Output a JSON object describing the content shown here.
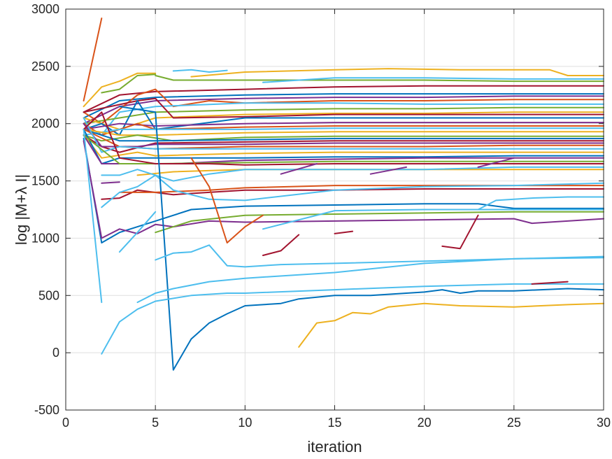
{
  "chart_data": {
    "type": "line",
    "title": "",
    "xlabel": "iteration",
    "ylabel": "log |M+λ I|",
    "xlim": [
      0,
      30
    ],
    "ylim": [
      -500,
      3000
    ],
    "xticks": [
      "0",
      "5",
      "10",
      "15",
      "20",
      "25",
      "30"
    ],
    "yticks": [
      "-500",
      "0",
      "500",
      "1000",
      "1500",
      "2000",
      "2500",
      "3000"
    ],
    "grid": true,
    "legend": "none",
    "palette": [
      "#0072BD",
      "#D95319",
      "#EDB120",
      "#7E2F8E",
      "#77AC30",
      "#4DBEEE",
      "#A2142F"
    ],
    "series": [
      {
        "name": "s1",
        "color": "#D95319",
        "x": [
          1,
          2
        ],
        "y": [
          2200,
          2920
        ]
      },
      {
        "name": "s2",
        "color": "#EDB120",
        "x": [
          1,
          2,
          3,
          4,
          5
        ],
        "y": [
          2150,
          2320,
          2370,
          2440,
          2440
        ]
      },
      {
        "name": "s3",
        "color": "#77AC30",
        "x": [
          2,
          3,
          4,
          5
        ],
        "y": [
          2270,
          2300,
          2420,
          2430
        ]
      },
      {
        "name": "s4",
        "color": "#4DBEEE",
        "x": [
          6,
          7,
          8,
          9
        ],
        "y": [
          2460,
          2470,
          2450,
          2465
        ]
      },
      {
        "name": "s5",
        "color": "#EDB120",
        "x": [
          7,
          10,
          15,
          18,
          22,
          27,
          28,
          30
        ],
        "y": [
          2410,
          2450,
          2470,
          2480,
          2470,
          2470,
          2420,
          2420
        ]
      },
      {
        "name": "s6",
        "color": "#77AC30",
        "x": [
          5,
          6,
          10,
          15,
          20,
          25,
          30
        ],
        "y": [
          2420,
          2380,
          2380,
          2380,
          2380,
          2370,
          2370
        ]
      },
      {
        "name": "s7",
        "color": "#4DBEEE",
        "x": [
          11,
          15,
          20,
          25,
          30
        ],
        "y": [
          2360,
          2400,
          2400,
          2390,
          2390
        ]
      },
      {
        "name": "s8",
        "color": "#A2142F",
        "x": [
          1,
          3,
          5,
          10,
          15,
          20,
          25,
          30
        ],
        "y": [
          2100,
          2250,
          2280,
          2300,
          2320,
          2330,
          2330,
          2330
        ]
      },
      {
        "name": "s9",
        "color": "#0072BD",
        "x": [
          1,
          3,
          5,
          10,
          15,
          20,
          25,
          30
        ],
        "y": [
          2050,
          2200,
          2230,
          2250,
          2260,
          2260,
          2260,
          2260
        ]
      },
      {
        "name": "s10",
        "color": "#7E2F8E",
        "x": [
          1,
          3,
          5,
          10,
          15,
          20,
          25,
          30
        ],
        "y": [
          2000,
          2150,
          2200,
          2220,
          2230,
          2230,
          2240,
          2240
        ]
      },
      {
        "name": "s11",
        "color": "#D95319",
        "x": [
          1,
          2,
          4,
          5,
          6,
          8,
          10,
          15,
          20,
          25,
          30
        ],
        "y": [
          2100,
          2000,
          2250,
          2300,
          2150,
          2200,
          2180,
          2200,
          2200,
          2210,
          2210
        ]
      },
      {
        "name": "s12",
        "color": "#4DBEEE",
        "x": [
          1,
          2,
          3,
          5,
          10,
          15,
          20,
          25,
          30
        ],
        "y": [
          2000,
          1900,
          2100,
          2150,
          2180,
          2180,
          2170,
          2170,
          2170
        ]
      },
      {
        "name": "s13",
        "color": "#77AC30",
        "x": [
          1,
          3,
          5,
          10,
          15,
          20,
          25,
          30
        ],
        "y": [
          2000,
          2050,
          2100,
          2120,
          2130,
          2130,
          2140,
          2140
        ]
      },
      {
        "name": "s14",
        "color": "#EDB120",
        "x": [
          1,
          3,
          5,
          10,
          15,
          20,
          25,
          30
        ],
        "y": [
          2050,
          1950,
          2050,
          2080,
          2090,
          2090,
          2100,
          2100
        ]
      },
      {
        "name": "s15",
        "color": "#A2142F",
        "x": [
          1,
          4,
          5,
          6,
          10,
          15,
          20,
          25,
          30
        ],
        "y": [
          2100,
          2200,
          2220,
          2050,
          2060,
          2080,
          2080,
          2080,
          2080
        ]
      },
      {
        "name": "s16",
        "color": "#0072BD",
        "x": [
          1,
          2,
          3,
          4,
          5,
          10,
          15,
          20,
          25,
          30
        ],
        "y": [
          1950,
          2000,
          1900,
          2200,
          1950,
          2050,
          2050,
          2050,
          2050,
          2050
        ]
      },
      {
        "name": "s17",
        "color": "#7E2F8E",
        "x": [
          1,
          3,
          5,
          10,
          15,
          20,
          25,
          30
        ],
        "y": [
          1950,
          2000,
          1980,
          2000,
          2010,
          2010,
          2010,
          2010
        ]
      },
      {
        "name": "s18",
        "color": "#D95319",
        "x": [
          1,
          2,
          3,
          4,
          5,
          10,
          15,
          20,
          25,
          30
        ],
        "y": [
          2000,
          1900,
          1950,
          2000,
          1950,
          1970,
          1980,
          1980,
          1980,
          1980
        ]
      },
      {
        "name": "s19",
        "color": "#4DBEEE",
        "x": [
          1,
          3,
          5,
          10,
          15,
          20,
          25,
          30
        ],
        "y": [
          1900,
          1950,
          1950,
          1950,
          1960,
          1960,
          1960,
          1960
        ]
      },
      {
        "name": "s20",
        "color": "#EDB120",
        "x": [
          1,
          3,
          5,
          10,
          15,
          20,
          25,
          30
        ],
        "y": [
          1950,
          1900,
          1900,
          1920,
          1930,
          1930,
          1930,
          1930
        ]
      },
      {
        "name": "s21",
        "color": "#77AC30",
        "x": [
          1,
          2,
          4,
          6,
          10,
          15,
          20,
          25,
          30
        ],
        "y": [
          1900,
          1850,
          1900,
          1850,
          1880,
          1890,
          1890,
          1890,
          1890
        ]
      },
      {
        "name": "s22",
        "color": "#0072BD",
        "x": [
          1,
          3,
          5,
          10,
          15,
          20,
          25,
          30
        ],
        "y": [
          1950,
          1850,
          1850,
          1860,
          1870,
          1870,
          1870,
          1870
        ]
      },
      {
        "name": "s23",
        "color": "#A2142F",
        "x": [
          1,
          2,
          3,
          5,
          10,
          15,
          20,
          25,
          30
        ],
        "y": [
          1900,
          1800,
          1750,
          1830,
          1840,
          1850,
          1850,
          1850,
          1850
        ]
      },
      {
        "name": "s24",
        "color": "#7E2F8E",
        "x": [
          1,
          2,
          4,
          5,
          10,
          15,
          20,
          25,
          30
        ],
        "y": [
          2000,
          1800,
          1800,
          1820,
          1820,
          1830,
          1830,
          1830,
          1830
        ]
      },
      {
        "name": "s25",
        "color": "#D95319",
        "x": [
          1,
          3,
          5,
          10,
          15,
          20,
          25,
          30
        ],
        "y": [
          1950,
          1800,
          1780,
          1800,
          1800,
          1800,
          1810,
          1810
        ]
      },
      {
        "name": "s26",
        "color": "#4DBEEE",
        "x": [
          1,
          2,
          3,
          5,
          10,
          15,
          20,
          25,
          30
        ],
        "y": [
          2050,
          1750,
          1800,
          1780,
          1780,
          1780,
          1780,
          1780,
          1780
        ]
      },
      {
        "name": "s27",
        "color": "#EDB120",
        "x": [
          1,
          2,
          4,
          5,
          10,
          15,
          20,
          25,
          30
        ],
        "y": [
          1900,
          1700,
          1750,
          1720,
          1740,
          1750,
          1750,
          1750,
          1750
        ]
      },
      {
        "name": "s28",
        "color": "#0072BD",
        "x": [
          1,
          2,
          3,
          5,
          10,
          15,
          20,
          25,
          30
        ],
        "y": [
          1950,
          1650,
          1700,
          1700,
          1700,
          1710,
          1710,
          1720,
          1720
        ]
      },
      {
        "name": "s29",
        "color": "#7E2F8E",
        "x": [
          1,
          2,
          4,
          6,
          10,
          15,
          20,
          25,
          30
        ],
        "y": [
          1900,
          1650,
          1650,
          1650,
          1680,
          1690,
          1700,
          1700,
          1700
        ]
      },
      {
        "name": "s30",
        "color": "#77AC30",
        "x": [
          1,
          3,
          5,
          10,
          15,
          20,
          25,
          30
        ],
        "y": [
          1900,
          1650,
          1650,
          1660,
          1670,
          1670,
          1670,
          1670
        ]
      },
      {
        "name": "s31",
        "color": "#A2142F",
        "x": [
          1,
          2,
          3,
          5,
          8,
          10,
          15,
          20,
          25,
          30
        ],
        "y": [
          1950,
          2100,
          1700,
          1650,
          1650,
          1640,
          1650,
          1650,
          1650,
          1650
        ]
      },
      {
        "name": "s32",
        "color": "#EDB120",
        "x": [
          4,
          6,
          10,
          15,
          20,
          25,
          30
        ],
        "y": [
          1550,
          1580,
          1600,
          1600,
          1600,
          1600,
          1600
        ]
      },
      {
        "name": "s33",
        "color": "#4DBEEE",
        "x": [
          2,
          3,
          4,
          6,
          8,
          10,
          15,
          20,
          25,
          30
        ],
        "y": [
          1550,
          1550,
          1600,
          1500,
          1560,
          1600,
          1600,
          1600,
          1620,
          1620
        ]
      },
      {
        "name": "s34",
        "color": "#A2142F",
        "x": [
          2,
          3,
          4,
          6,
          8,
          10,
          15,
          20,
          25,
          30
        ],
        "y": [
          1340,
          1350,
          1420,
          1380,
          1400,
          1420,
          1420,
          1430,
          1430,
          1430
        ]
      },
      {
        "name": "s35",
        "color": "#D95319",
        "x": [
          3,
          5,
          8,
          10,
          15,
          20,
          25,
          30
        ],
        "y": [
          1400,
          1400,
          1420,
          1440,
          1460,
          1460,
          1460,
          1460
        ]
      },
      {
        "name": "s36",
        "color": "#4DBEEE",
        "x": [
          2,
          3,
          4,
          5,
          6,
          8,
          10,
          15,
          20,
          25,
          30
        ],
        "y": [
          1270,
          1400,
          1450,
          1550,
          1420,
          1340,
          1330,
          1420,
          1450,
          1460,
          1480
        ]
      },
      {
        "name": "s37",
        "color": "#0072BD",
        "x": [
          1,
          2,
          3,
          5,
          7,
          10,
          15,
          20,
          23,
          24,
          25,
          30
        ],
        "y": [
          1870,
          960,
          1050,
          1150,
          1250,
          1280,
          1290,
          1300,
          1300,
          1280,
          1260,
          1260
        ]
      },
      {
        "name": "s38",
        "color": "#7E2F8E",
        "x": [
          1,
          2,
          3,
          4,
          5,
          6,
          8,
          10,
          15,
          20,
          25,
          26,
          30
        ],
        "y": [
          1850,
          1000,
          1080,
          1040,
          1120,
          1100,
          1150,
          1140,
          1150,
          1160,
          1170,
          1130,
          1170
        ]
      },
      {
        "name": "s39",
        "color": "#77AC30",
        "x": [
          5,
          7,
          10,
          15,
          20,
          25,
          30
        ],
        "y": [
          1050,
          1150,
          1200,
          1210,
          1220,
          1230,
          1230
        ]
      },
      {
        "name": "s40",
        "color": "#D95319",
        "x": [
          7,
          8,
          9,
          10,
          11
        ],
        "y": [
          1700,
          1450,
          960,
          1100,
          1200
        ]
      },
      {
        "name": "s41",
        "color": "#4DBEEE",
        "x": [
          11,
          15,
          20,
          25,
          30
        ],
        "y": [
          1080,
          1240,
          1250,
          1250,
          1250
        ]
      },
      {
        "name": "s42",
        "color": "#4DBEEE",
        "x": [
          1,
          2
        ],
        "y": [
          1950,
          440
        ]
      },
      {
        "name": "s43",
        "color": "#4DBEEE",
        "x": [
          3,
          4,
          5
        ],
        "y": [
          880,
          1050,
          1230
        ]
      },
      {
        "name": "s44",
        "color": "#0072BD",
        "x": [
          3,
          5,
          6,
          7,
          8,
          9,
          10,
          12,
          13,
          15,
          17,
          20,
          21,
          22,
          23,
          25,
          28,
          30
        ],
        "y": [
          2150,
          2100,
          -150,
          120,
          260,
          340,
          410,
          430,
          470,
          500,
          500,
          530,
          550,
          520,
          540,
          540,
          560,
          550
        ]
      },
      {
        "name": "s45",
        "color": "#4DBEEE",
        "x": [
          5,
          6,
          7,
          8,
          9,
          10,
          12,
          15,
          20,
          25,
          30
        ],
        "y": [
          810,
          870,
          880,
          940,
          760,
          750,
          770,
          780,
          800,
          820,
          830
        ]
      },
      {
        "name": "s46",
        "color": "#4DBEEE",
        "x": [
          4,
          5,
          6,
          8,
          10,
          15,
          20,
          25,
          30
        ],
        "y": [
          440,
          520,
          560,
          620,
          650,
          700,
          780,
          820,
          840
        ]
      },
      {
        "name": "s47",
        "color": "#4DBEEE",
        "x": [
          2,
          3,
          4,
          5,
          7,
          9,
          10,
          15,
          20,
          25,
          30
        ],
        "y": [
          -10,
          270,
          380,
          450,
          500,
          520,
          520,
          550,
          580,
          600,
          600
        ]
      },
      {
        "name": "s48",
        "color": "#EDB120",
        "x": [
          13,
          14,
          15,
          16,
          17,
          18,
          20,
          22,
          25,
          28,
          30
        ],
        "y": [
          50,
          260,
          280,
          350,
          340,
          400,
          430,
          410,
          400,
          420,
          430
        ]
      },
      {
        "name": "s49",
        "color": "#A2142F",
        "x": [
          11,
          12,
          13
        ],
        "y": [
          850,
          890,
          1030
        ]
      },
      {
        "name": "s50",
        "color": "#A2142F",
        "x": [
          15,
          16
        ],
        "y": [
          1040,
          1060
        ]
      },
      {
        "name": "s51",
        "color": "#A2142F",
        "x": [
          21,
          22,
          23
        ],
        "y": [
          930,
          910,
          1200
        ]
      },
      {
        "name": "s52",
        "color": "#A2142F",
        "x": [
          26,
          28
        ],
        "y": [
          600,
          620
        ]
      },
      {
        "name": "s53",
        "color": "#7E2F8E",
        "x": [
          2,
          3
        ],
        "y": [
          1480,
          1490
        ]
      },
      {
        "name": "s54",
        "color": "#7E2F8E",
        "x": [
          12,
          14
        ],
        "y": [
          1560,
          1650
        ]
      },
      {
        "name": "s55",
        "color": "#7E2F8E",
        "x": [
          17,
          18,
          19
        ],
        "y": [
          1560,
          1590,
          1620
        ]
      },
      {
        "name": "s56",
        "color": "#7E2F8E",
        "x": [
          23,
          25
        ],
        "y": [
          1620,
          1700
        ]
      },
      {
        "name": "s57",
        "color": "#4DBEEE",
        "x": [
          23,
          24,
          26,
          28,
          30
        ],
        "y": [
          1250,
          1330,
          1350,
          1360,
          1360
        ]
      }
    ]
  }
}
